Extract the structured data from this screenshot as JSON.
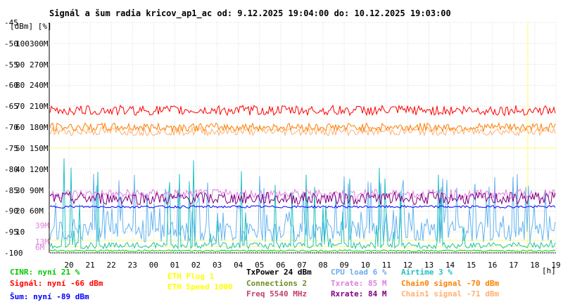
{
  "title": "Signál a šum radia kricov_ap1_ac od: 9.12.2025 19:04:00 do: 10.12.2025 19:03:00",
  "chart_data": {
    "type": "line",
    "units_label": "[dBm] [%]",
    "x_unit": "[h]",
    "x_ticks": [
      "20",
      "21",
      "22",
      "23",
      "00",
      "01",
      "02",
      "03",
      "04",
      "05",
      "06",
      "07",
      "08",
      "09",
      "10",
      "11",
      "12",
      "13",
      "14",
      "15",
      "16",
      "17",
      "18",
      "19"
    ],
    "y_ticks_dbm": [
      "-45",
      "-50",
      "-55",
      "-60",
      "-65",
      "-70",
      "-75",
      "-80",
      "-85",
      "-90",
      "-95",
      "-100"
    ],
    "y_ticks_pct": [
      "",
      "100",
      "90",
      "80",
      "70",
      "60",
      "50",
      "40",
      "30",
      "20",
      "10",
      ""
    ],
    "y_ticks_rate": [
      "",
      "300M",
      "270M",
      "240M",
      "210M",
      "180M",
      "150M",
      "120M",
      "90M",
      "60M",
      "",
      ""
    ],
    "inner_rate_ticks": [
      "39M",
      "13M",
      "6M"
    ],
    "ylim": [
      -100,
      -45
    ],
    "grid": true,
    "series": [
      {
        "name": "Signál",
        "color": "#ff0000",
        "level": -66,
        "noise": 1.2
      },
      {
        "name": "Chain0 signal",
        "color": "#ff8000",
        "level": -70,
        "noise": 1.0
      },
      {
        "name": "Chain1 signal",
        "color": "#ffb070",
        "level": -71,
        "noise": 1.0
      },
      {
        "name": "Šum",
        "color": "#0000ff",
        "level": -89,
        "noise": 0.3
      },
      {
        "name": "Rxrate",
        "color": "#800080",
        "level": -87,
        "noise": 1.5
      },
      {
        "name": "Txrate",
        "color": "#e080e0",
        "level": -86,
        "noise": 1.2
      },
      {
        "name": "CPU load",
        "color": "#64b4f0",
        "level": -95,
        "noise": 4
      },
      {
        "name": "Airtime",
        "color": "#20c0c0",
        "level": -99,
        "noise": 2
      },
      {
        "name": "CINR",
        "color": "#00d000",
        "level": -99.5,
        "noise": 0.2
      }
    ]
  },
  "legend": {
    "cinr": "CINR: nyní 21 %",
    "signal": "Signál: nyní -66 dBm",
    "sum": "Šum: nyní -89 dBm",
    "eth_plug": "ETH Plug 1",
    "eth_speed": "ETH Speed 1000",
    "txpower": "TxPower 24 dBm",
    "connections": "Connections 2",
    "freq": "Freq 5540 MHz",
    "cpu": "CPU load 6 %",
    "txrate": "Txrate: 85 M",
    "rxrate": "Rxrate: 84 M",
    "airtime": "Airtime 3 %",
    "chain0": "Chain0 signal -70 dBm",
    "chain1": "Chain1 signal -71 dBm"
  },
  "colors": {
    "cinr": "#00c800",
    "signal": "#ff0000",
    "sum": "#0000ff",
    "eth": "#ffff00",
    "txpower": "#000000",
    "connections": "#6b8e23",
    "freq": "#c04070",
    "cpu": "#6eaaf0",
    "txrate": "#e080e0",
    "rxrate": "#800080",
    "airtime": "#20c0c0",
    "chain0": "#ff8000",
    "chain1": "#ffb070"
  }
}
